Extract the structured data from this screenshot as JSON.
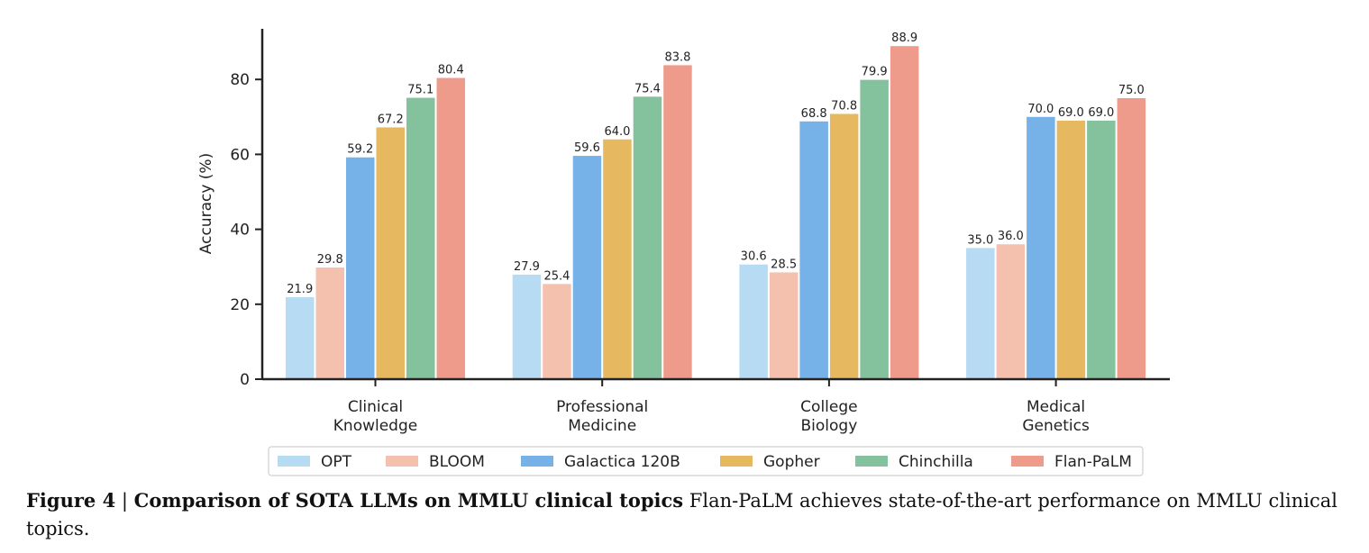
{
  "chart_data": {
    "type": "bar",
    "title": "",
    "xlabel": "",
    "ylabel": "Accuracy (%)",
    "ylim": [
      0,
      92
    ],
    "yticks": [
      0,
      20,
      40,
      60,
      80
    ],
    "grid": false,
    "legend_position": "bottom",
    "categories": [
      [
        "Clinical",
        "Knowledge"
      ],
      [
        "Professional",
        "Medicine"
      ],
      [
        "College",
        "Biology"
      ],
      [
        "Medical",
        "Genetics"
      ]
    ],
    "series": [
      {
        "name": "OPT",
        "color": "#b7dbf2",
        "values": [
          21.9,
          27.9,
          30.6,
          35.0
        ],
        "labels": [
          "21.9",
          "27.9",
          "30.6",
          "35.0"
        ]
      },
      {
        "name": "BLOOM",
        "color": "#f3c1ae",
        "values": [
          29.8,
          25.4,
          28.5,
          36.0
        ],
        "labels": [
          "29.8",
          "25.4",
          "28.5",
          "36.0"
        ]
      },
      {
        "name": "Galactica 120B",
        "color": "#76b1e8",
        "values": [
          59.2,
          59.6,
          68.8,
          70.0
        ],
        "labels": [
          "59.2",
          "59.6",
          "68.8",
          "70.0"
        ]
      },
      {
        "name": "Gopher",
        "color": "#e6b85f",
        "values": [
          67.2,
          64.0,
          70.8,
          69.0
        ],
        "labels": [
          "67.2",
          "64.0",
          "70.8",
          "69.0"
        ]
      },
      {
        "name": "Chinchilla",
        "color": "#84c19d",
        "values": [
          75.1,
          75.4,
          79.9,
          69.0
        ],
        "labels": [
          "75.1",
          "75.4",
          "79.9",
          "69.0"
        ]
      },
      {
        "name": "Flan-PaLM",
        "color": "#ef9b8c",
        "values": [
          80.4,
          83.8,
          88.9,
          75.0
        ],
        "labels": [
          "80.4",
          "83.8",
          "88.9",
          "75.0"
        ]
      }
    ]
  },
  "caption": {
    "label": "Figure 4",
    "separator": "|",
    "title": "Comparison of SOTA LLMs on MMLU clinical topics",
    "text": "Flan-PaLM achieves state-of-the-art performance on MMLU clinical topics."
  }
}
